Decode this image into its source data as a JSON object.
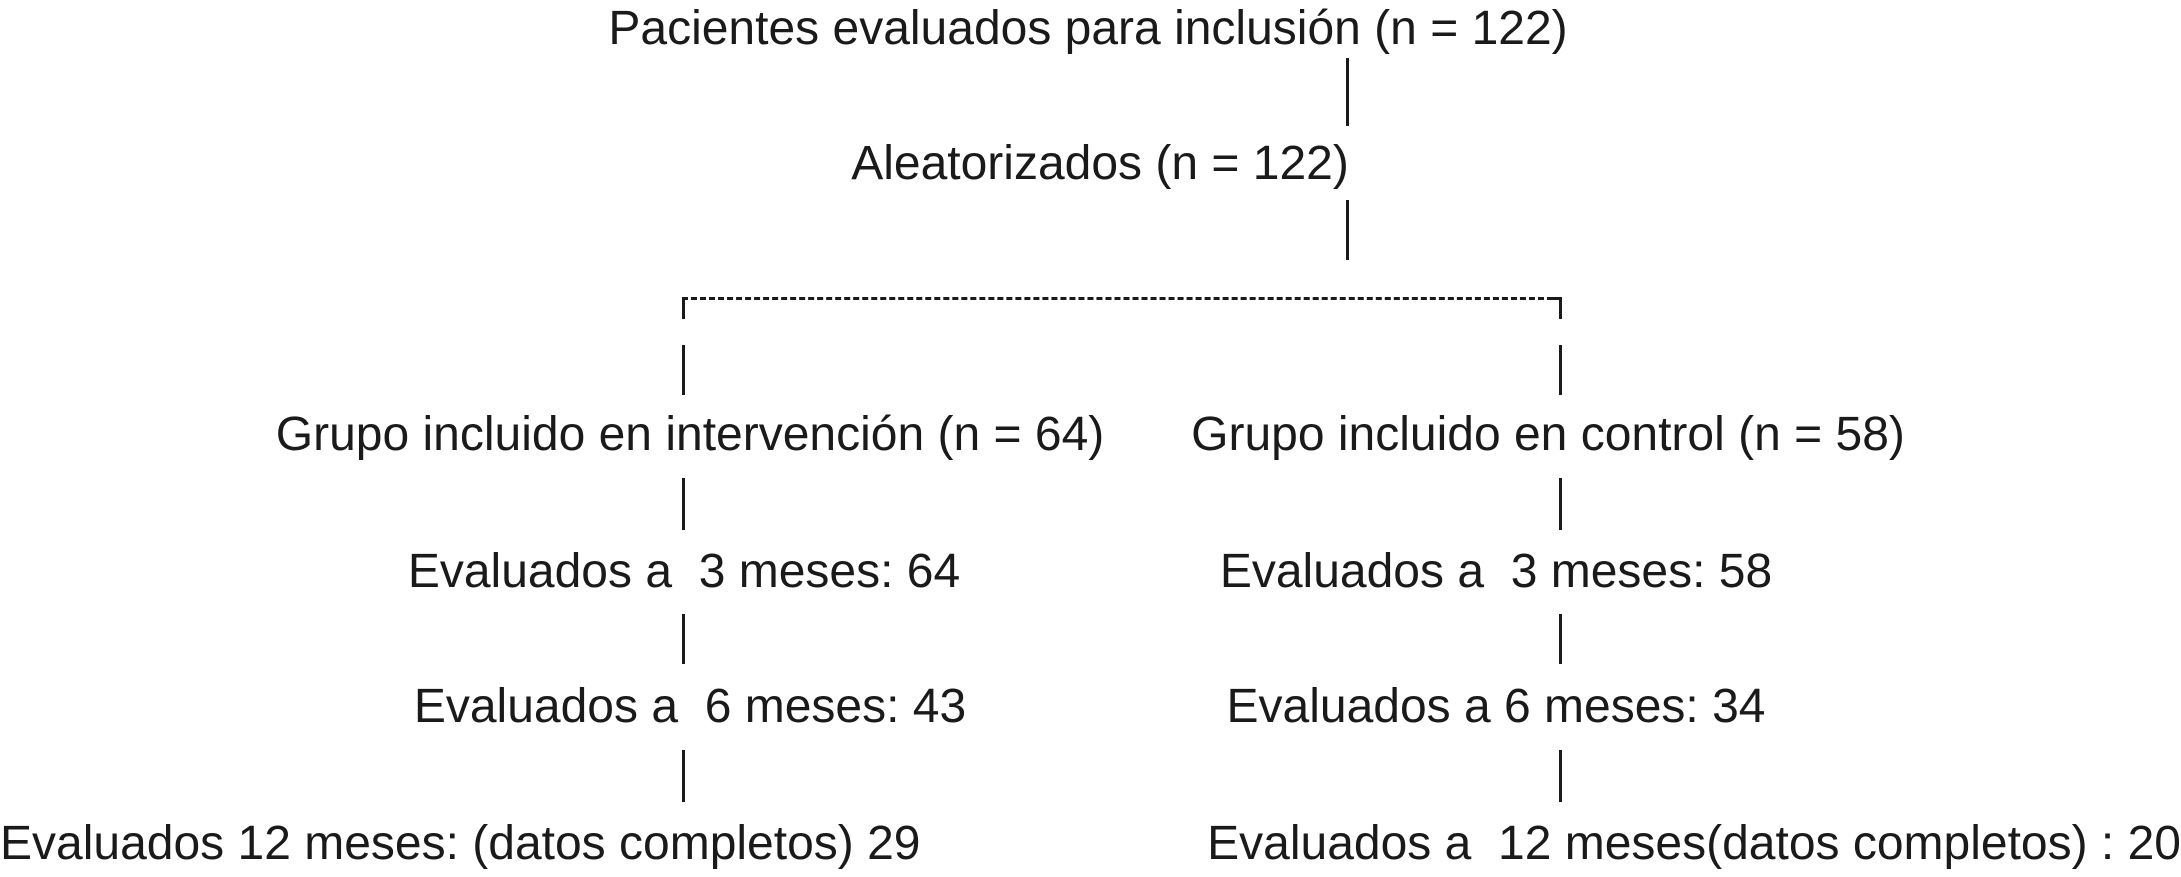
{
  "flowchart": {
    "screening": "Pacientes evaluados para inclusión (n = 122)",
    "randomized": "Aleatorizados (n = 122)",
    "intervention": {
      "group": "Grupo incluido en intervención (n = 64)",
      "month3": "Evaluados a  3 meses: 64",
      "month6": "Evaluados a  6 meses: 43",
      "month12": "Evaluados 12 meses: (datos completos) 29"
    },
    "control": {
      "group": "Grupo incluido en control (n = 58)",
      "month3": "Evaluados a  3 meses: 58",
      "month6": "Evaluados a 6 meses: 34",
      "month12": "Evaluados a  12 meses(datos completos) : 20"
    }
  }
}
